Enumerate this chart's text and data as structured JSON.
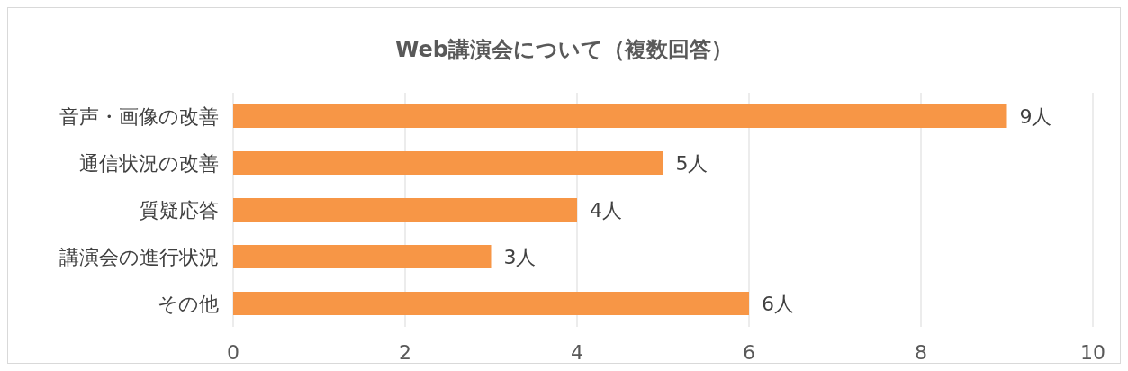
{
  "chart_data": {
    "type": "bar",
    "orientation": "horizontal",
    "title": "Web講演会について（複数回答）",
    "categories": [
      "音声・画像の改善",
      "通信状況の改善",
      "質疑応答",
      "講演会の進行状況",
      "その他"
    ],
    "values": [
      9,
      5,
      4,
      3,
      6
    ],
    "value_labels": [
      "9人",
      "5人",
      "4人",
      "3人",
      "6人"
    ],
    "color": "#f79646",
    "xlim": [
      0,
      10
    ],
    "xticks": [
      0,
      2,
      4,
      6,
      8,
      10
    ],
    "grid": "x",
    "legend": false
  }
}
